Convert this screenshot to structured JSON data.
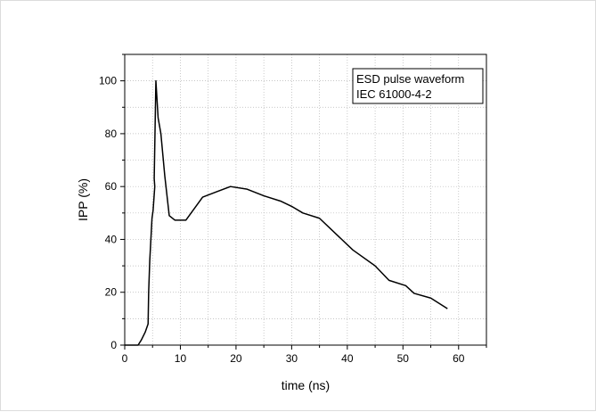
{
  "chart_data": {
    "type": "line",
    "title": "",
    "xlabel": "time (ns)",
    "ylabel": "IPP (%)",
    "xlim": [
      0,
      65
    ],
    "ylim": [
      0,
      110
    ],
    "x_ticks": [
      0,
      10,
      20,
      30,
      40,
      50,
      60
    ],
    "y_ticks": [
      0,
      20,
      40,
      60,
      80,
      100
    ],
    "grid": true,
    "legend": {
      "placement": "top-right",
      "lines": [
        "ESD pulse waveform",
        "IEC 61000-4-2"
      ]
    },
    "line_color": "#000000",
    "series": [
      {
        "x": [
          0,
          2.4,
          3.0,
          3.7,
          4.2,
          4.3,
          4.4,
          4.5,
          4.7,
          4.9,
          5.1,
          5.4,
          5.3,
          5.6,
          6.0,
          6.5,
          7.2,
          8.0,
          9.0,
          11.0,
          14.0,
          16.5,
          19.0,
          22.0,
          25.0,
          28.0,
          30.0,
          32.0,
          35.0,
          38.0,
          41.0,
          45.0,
          47.5,
          50.5,
          52.0,
          55.0,
          58.0
        ],
        "y": [
          0,
          0,
          2,
          5,
          8,
          20,
          26,
          32,
          40,
          48,
          51,
          60,
          63,
          100,
          86,
          80,
          64,
          49,
          47.3,
          47.3,
          56,
          58,
          60,
          59,
          56.5,
          54.5,
          52.5,
          50,
          48,
          42,
          36,
          30,
          24.5,
          22.5,
          19.6,
          17.8,
          13.8
        ]
      }
    ]
  }
}
